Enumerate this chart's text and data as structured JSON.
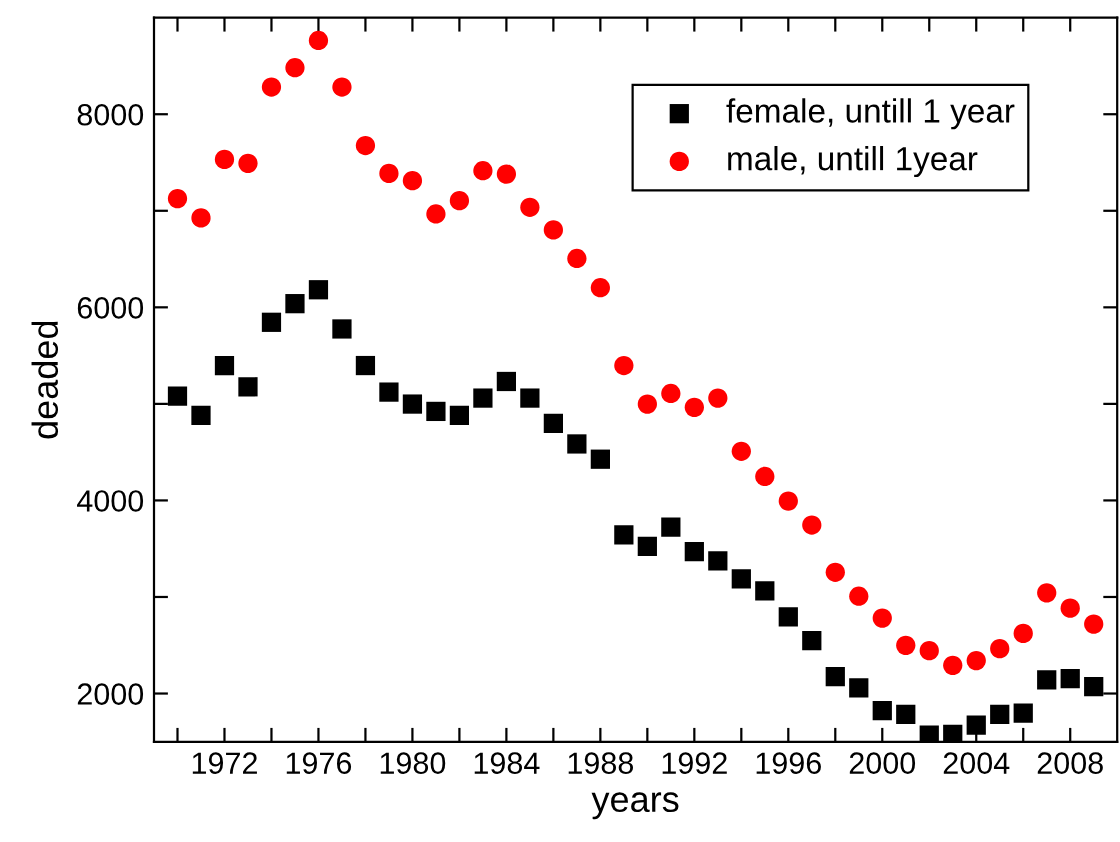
{
  "chart_data": {
    "type": "scatter",
    "xlabel": "years",
    "ylabel": "deaded",
    "x": [
      1970,
      1971,
      1972,
      1973,
      1974,
      1975,
      1976,
      1977,
      1978,
      1979,
      1980,
      1981,
      1982,
      1983,
      1984,
      1985,
      1986,
      1987,
      1988,
      1989,
      1990,
      1991,
      1992,
      1993,
      1994,
      1995,
      1996,
      1997,
      1998,
      1999,
      2000,
      2001,
      2002,
      2003,
      2004,
      2005,
      2006,
      2007,
      2008,
      2009
    ],
    "series": [
      {
        "name": "female, untill 1 year",
        "color": "#000000",
        "marker": "square",
        "values": [
          5081,
          4881,
          5397,
          5177,
          5845,
          6038,
          6182,
          5776,
          5397,
          5122,
          4998,
          4922,
          4881,
          5060,
          5232,
          5060,
          4798,
          4585,
          4427,
          3642,
          3525,
          3724,
          3470,
          3373,
          3187,
          3063,
          2795,
          2547,
          2175,
          2058,
          1824,
          1783,
          1569,
          1576,
          1673,
          1783,
          1797,
          2141,
          2155,
          2072
        ]
      },
      {
        "name": "male, untill 1year",
        "color": "#ff0000",
        "marker": "circle",
        "values": [
          7126,
          6926,
          7532,
          7491,
          8282,
          8482,
          8764,
          8282,
          7676,
          7387,
          7312,
          6967,
          7105,
          7415,
          7380,
          7036,
          6802,
          6506,
          6203,
          5397,
          4998,
          5108,
          4964,
          5060,
          4509,
          4248,
          3993,
          3745,
          3256,
          3008,
          2781,
          2499,
          2444,
          2292,
          2341,
          2465,
          2623,
          3043,
          2884,
          2719
        ]
      }
    ],
    "xlim": [
      1969,
      2010
    ],
    "ylim": [
      1500,
      9000
    ],
    "xticks": [
      {
        "value": 1970,
        "label": null
      },
      1972,
      {
        "value": 1974,
        "label": null
      },
      1976,
      {
        "value": 1978,
        "label": null
      },
      1980,
      {
        "value": 1982,
        "label": null
      },
      1984,
      {
        "value": 1986,
        "label": null
      },
      1988,
      {
        "value": 1990,
        "label": null
      },
      1992,
      {
        "value": 1994,
        "label": null
      },
      1996,
      {
        "value": 1998,
        "label": null
      },
      2000,
      {
        "value": 2002,
        "label": null
      },
      2004,
      {
        "value": 2006,
        "label": null
      },
      2008
    ],
    "yticks": [
      2000,
      {
        "value": 3000,
        "label": null
      },
      4000,
      {
        "value": 5000,
        "label": null
      },
      6000,
      {
        "value": 7000,
        "label": null
      },
      8000
    ],
    "legend": "top right",
    "grid": false
  }
}
